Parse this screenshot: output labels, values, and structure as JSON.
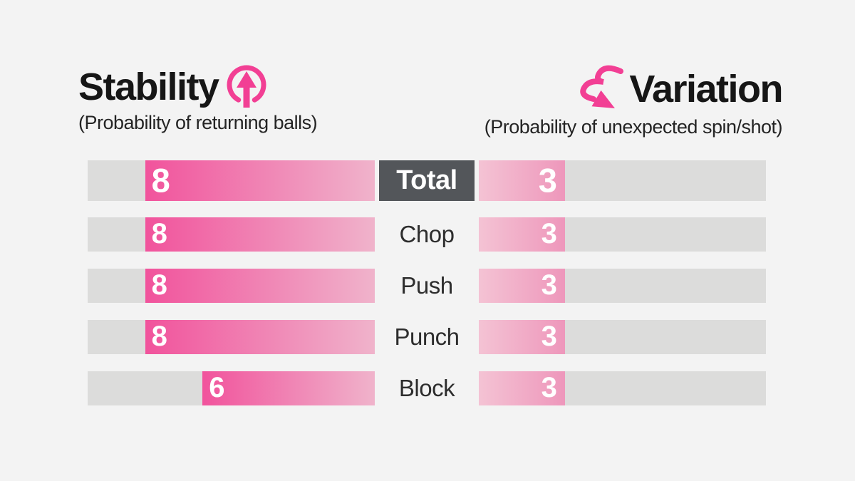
{
  "page": {
    "background": "#f3f3f3"
  },
  "header": {
    "left": {
      "title": "Stability",
      "icon": "arrow-up-circle-icon",
      "subtitle": "(Probability of returning balls)"
    },
    "right": {
      "title": "Variation",
      "icon": "swoosh-arrow-icon",
      "subtitle": "(Probability of unexpected spin/shot)"
    }
  },
  "colors": {
    "accent_pink": "#f23f94",
    "bar_strong_pink": "#f1539c",
    "bar_pale_pink": "#f0b3cb",
    "bar_light_start": "#f4c3d4",
    "bar_light_end": "#ee97bb",
    "track_gray": "#dcdcdb",
    "label_box_dark": "#53565a",
    "background": "#f3f3f3",
    "title_text": "#161616",
    "category_text": "#2d2d2d",
    "value_text": "#ffffff"
  },
  "chart_data": {
    "type": "bar",
    "layout": "paired-horizontal, left series grows leftward toward labels, right series grows rightward",
    "categories": [
      "Total",
      "Chop",
      "Push",
      "Punch",
      "Block"
    ],
    "series": [
      {
        "name": "Stability",
        "side": "left",
        "values": [
          8,
          8,
          8,
          8,
          6
        ]
      },
      {
        "name": "Variation",
        "side": "right",
        "values": [
          3,
          3,
          3,
          3,
          3
        ]
      }
    ],
    "scale_max": 10,
    "left_title": "Stability",
    "left_subtitle": "(Probability of returning balls)",
    "right_title": "Variation",
    "right_subtitle": "(Probability of unexpected spin/shot)",
    "emphasized_category": "Total",
    "grid": false,
    "legend_position": "none"
  }
}
